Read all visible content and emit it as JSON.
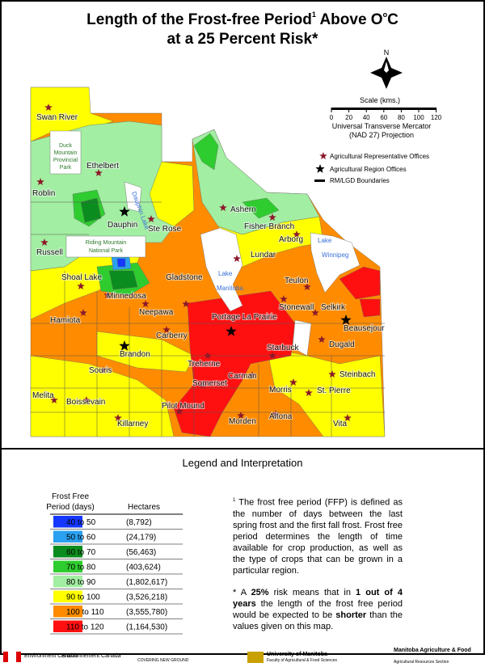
{
  "title": {
    "line1": "Length of the Frost-free Period",
    "sup1": "1",
    "line1b": "Above O",
    "sup2": "o",
    "line1c": "C",
    "line2": "at a 25 Percent Risk*"
  },
  "compass": "N",
  "scale": {
    "label": "Scale (kms.)",
    "ticks": [
      0,
      20,
      40,
      60,
      80,
      100,
      120
    ]
  },
  "projection": [
    "Universal Transverse Mercator",
    "(NAD 27) Projection"
  ],
  "symbols": [
    "Agricultural Representative Offices",
    "Agricultural Region Offices",
    "RM/LGD Boundaries"
  ],
  "agricultural_representative_offices": [
    "Swan River",
    "Ethelbert",
    "Roblin",
    "Ste Rose",
    "Ashern",
    "Fisher Branch",
    "Arborg",
    "Russell",
    "Lundar",
    "Shoal Lake",
    "Minnedosa",
    "Gladstone",
    "Teulon",
    "Neepawa",
    "Stonewall",
    "Selkirk",
    "Hamiota",
    "Carberry",
    "Dugald",
    "Starbuck",
    "Treherne",
    "Souris",
    "Steinbach",
    "Carman",
    "Somerset",
    "Morris",
    "St. Pierre",
    "Melita",
    "Boissevain",
    "Pilot Mound",
    "Altona",
    "Morden",
    "Killarney",
    "Vita"
  ],
  "agricultural_region_offices": [
    "Dauphin",
    "Brandon",
    "Portage La Prairie",
    "Beausejour"
  ],
  "lakes": [
    [
      "Lake",
      "Manitoba"
    ],
    [
      "Lake",
      "Winnipeg"
    ],
    [
      "Dauphin Lake"
    ]
  ],
  "parks": [
    [
      "Duck",
      "Mountain",
      "Provincial",
      "Park"
    ],
    [
      "Riding Mountain",
      "National Park"
    ]
  ],
  "legend": {
    "title": "Legend and Interpretation",
    "header": [
      "Frost Free",
      "Period (days)",
      "Hectares"
    ],
    "rows": [
      {
        "range": "40 to 50",
        "color": "#1537ff",
        "hectares": "(8,792)"
      },
      {
        "range": "50 to 60",
        "color": "#2aa0f0",
        "hectares": "(24,179)"
      },
      {
        "range": "60 to 70",
        "color": "#0b8c1e",
        "hectares": "(56,463)"
      },
      {
        "range": "70 to 80",
        "color": "#2fcc2f",
        "hectares": "(403,624)"
      },
      {
        "range": "80 to 90",
        "color": "#a2eea2",
        "hectares": "(1,802,617)"
      },
      {
        "range": "90 to 100",
        "color": "#ffff00",
        "hectares": "(3,526,218)"
      },
      {
        "range": "100 to 110",
        "color": "#ff8c00",
        "hectares": "(3,555,780)"
      },
      {
        "range": "110 to 120",
        "color": "#ff1010",
        "hectares": "(1,164,530)"
      }
    ]
  },
  "note1": {
    "mark": "1",
    "text": "The frost free period (FFP) is defined as the number of days between the last spring frost and the first fall frost. Frost free period determines the length of time available for crop production, as well as the type of crops that can be grown in a particular region."
  },
  "note2": [
    "* A ",
    "25%",
    " risk means that in ",
    "1 out of 4 years",
    " the length of the frost free period would be expected to be ",
    "shorter",
    " than the values given on this map."
  ],
  "footer": {
    "env1": "Environment Canada",
    "env2": "Environnement Canada",
    "cng": "COVERING NEW GROUND",
    "um1": "University of Manitoba",
    "um2": "Faculty of Agricultural & Food Sciences",
    "maf1": "Manitoba Agriculture & Food",
    "maf2": "Agricultural Resources Section"
  }
}
